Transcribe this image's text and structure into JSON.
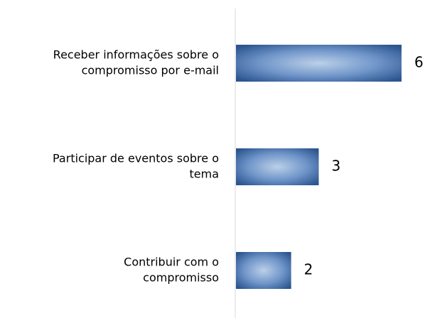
{
  "chart_data": {
    "type": "barh",
    "categories": [
      [
        "Receber informações sobre o",
        "compromisso por e-mail"
      ],
      [
        "Participar de eventos sobre o",
        "tema"
      ],
      [
        "Contribuir com o",
        "compromisso"
      ]
    ],
    "values": [
      6,
      3,
      2
    ],
    "xlim": [
      0,
      6
    ],
    "color": "#3e6cae"
  }
}
